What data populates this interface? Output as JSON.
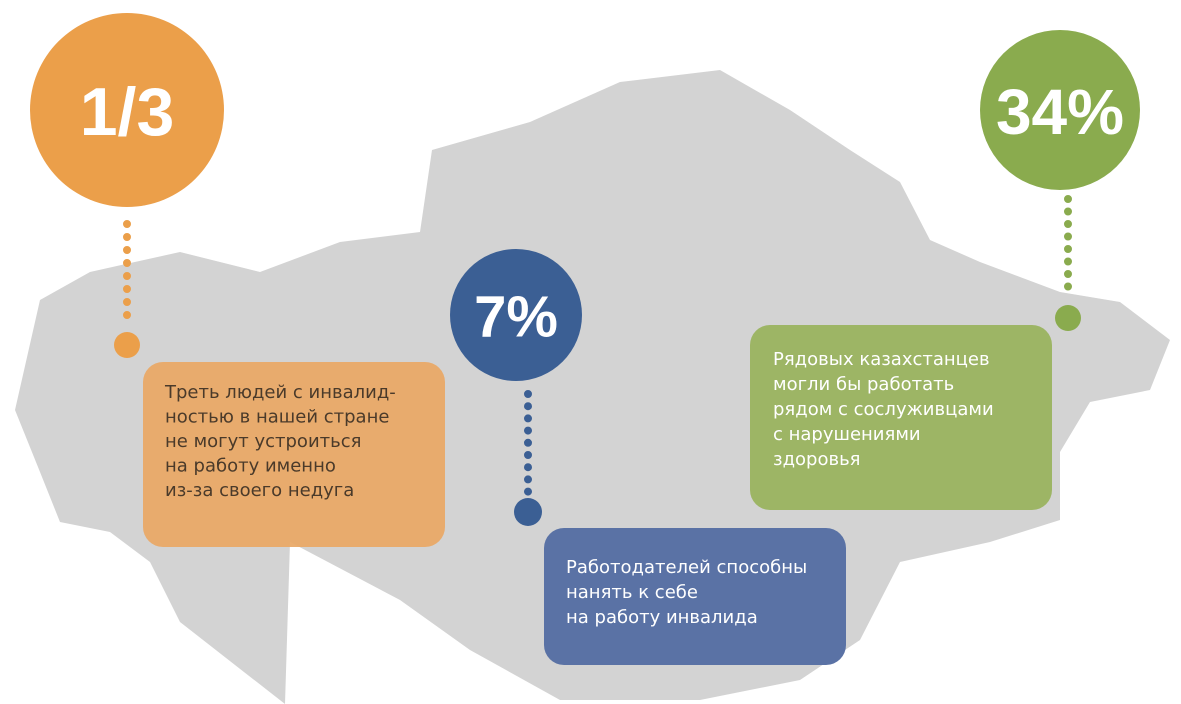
{
  "callouts": [
    {
      "value": "1/3",
      "text": [
        "Треть людей с инвалид-",
        "ностью в нашей стране",
        "не могут устроиться",
        "на работу именно",
        "из-за своего недуга"
      ]
    },
    {
      "value": "7%",
      "text": [
        "Работодателей способны",
        "нанять к себе",
        "на работу инвалида"
      ]
    },
    {
      "value": "34%",
      "text": [
        "Рядовых казахстанцев",
        "могли бы работать",
        "рядом с сослуживцами",
        "с нарушениями",
        "здоровья"
      ]
    }
  ]
}
